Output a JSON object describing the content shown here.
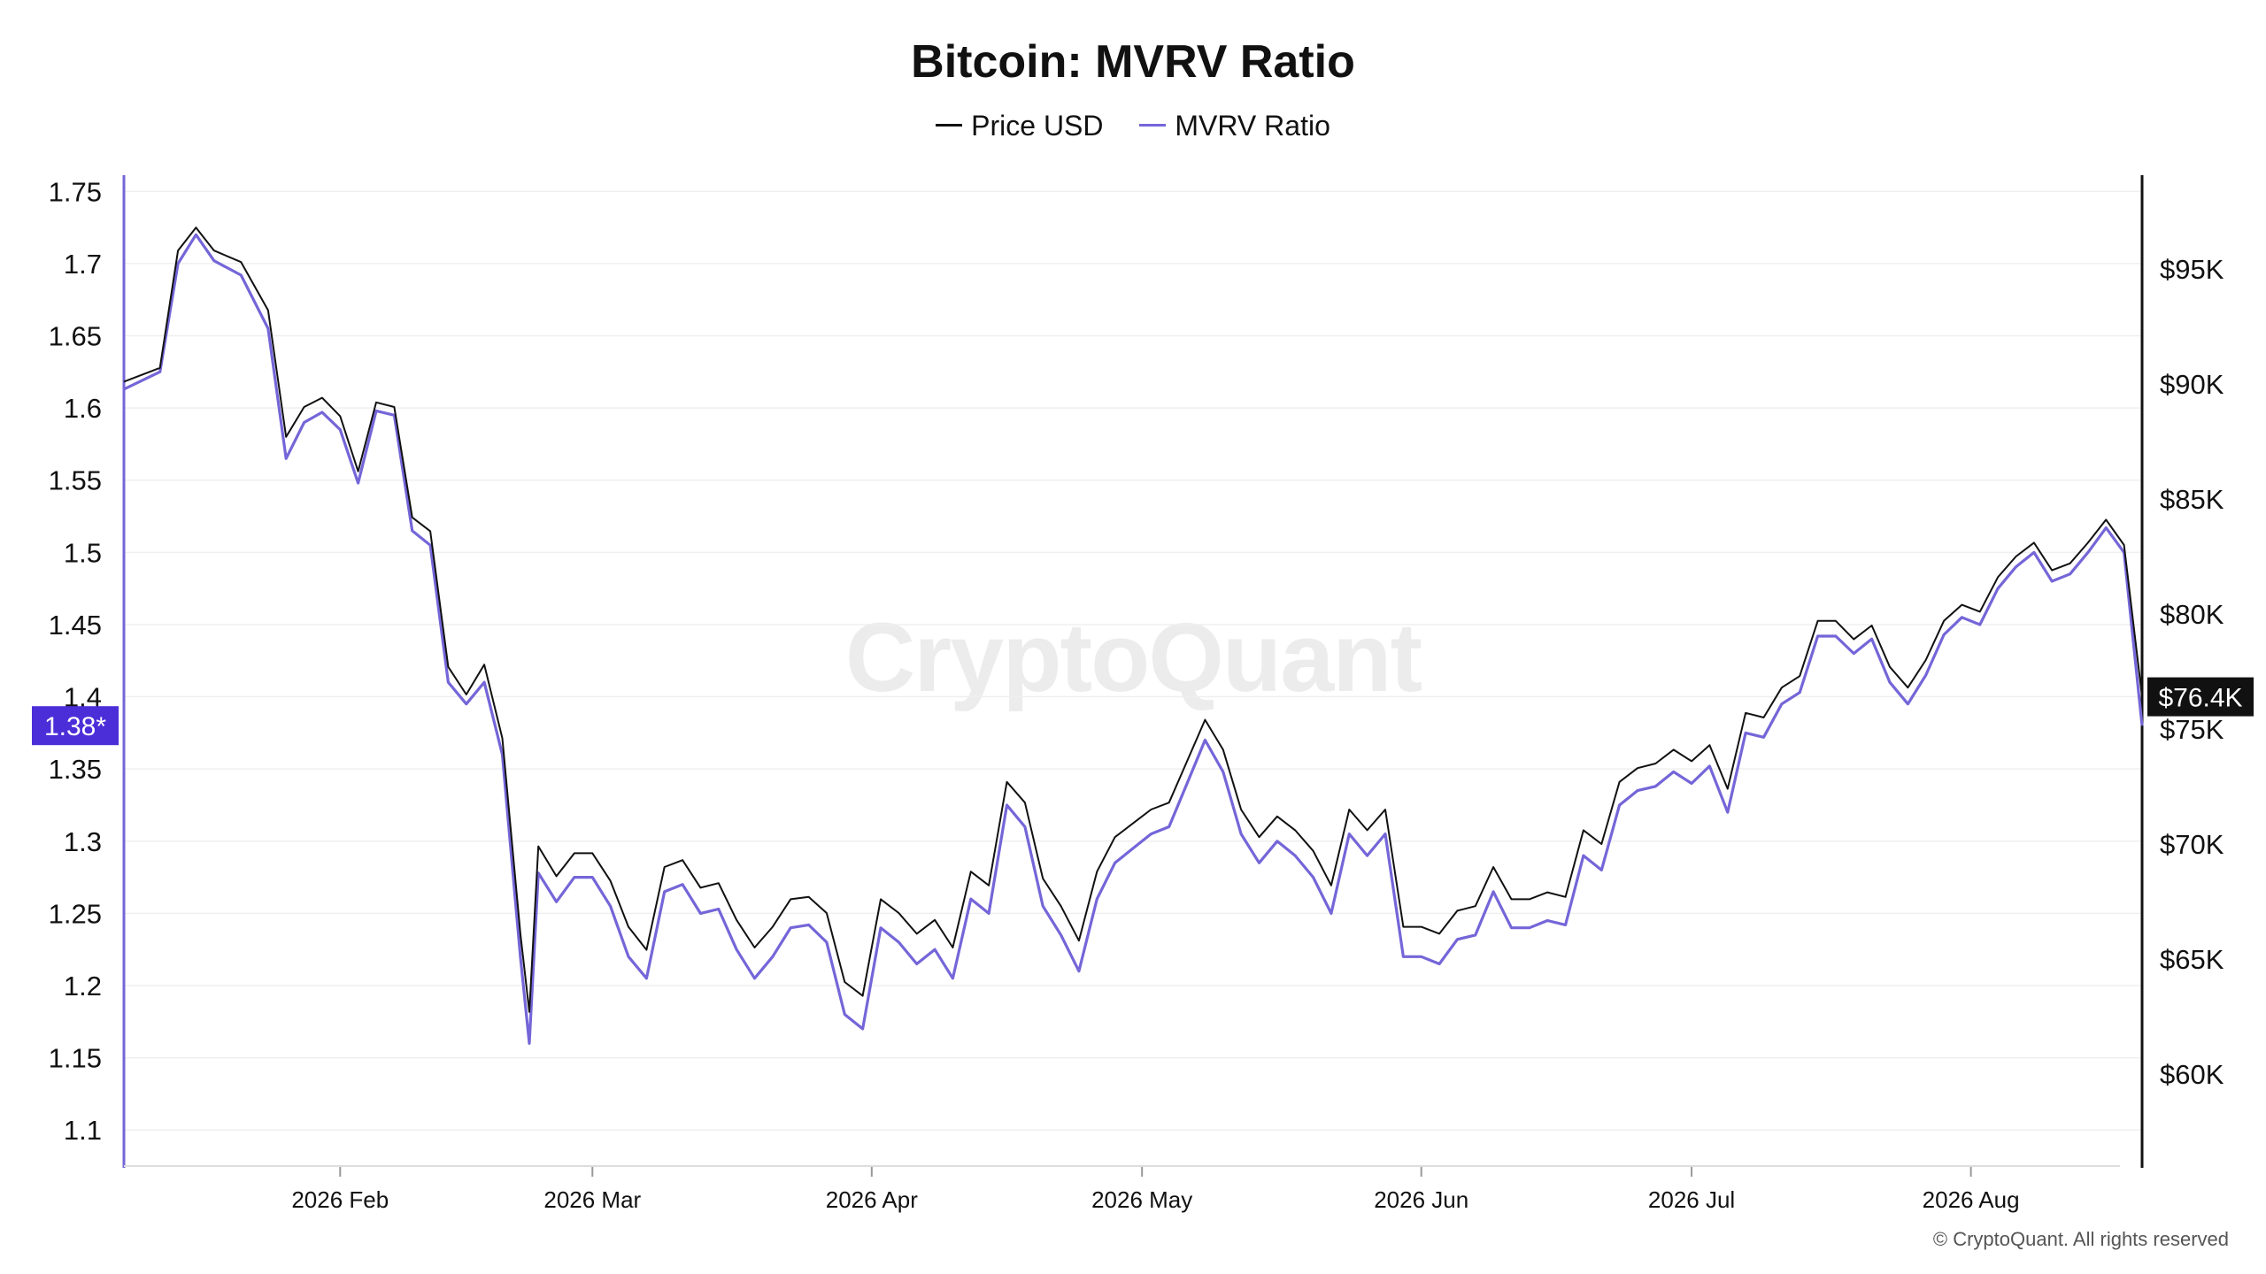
{
  "chart_data": {
    "type": "line",
    "title": "Bitcoin: MVRV Ratio",
    "legend_position": "top-center",
    "grid": true,
    "x_ticks": [
      "2026 Feb",
      "2026 Mar",
      "2026 Apr",
      "2026 May",
      "2026 Jun",
      "2026 Jul",
      "2026 Aug"
    ],
    "x_range": [
      "2026-01-08",
      "2026-08-20"
    ],
    "left_axis": {
      "label": "",
      "range": [
        1.075,
        1.76
      ],
      "ticks": [
        "1.75",
        "1.7",
        "1.65",
        "1.6",
        "1.55",
        "1.5",
        "1.45",
        "1.4",
        "1.35",
        "1.3",
        "1.25",
        "1.2",
        "1.15",
        "1.1"
      ],
      "current_value_label": "1.38*",
      "current_value": 1.38,
      "color": "#7466d8"
    },
    "right_axis": {
      "label": "",
      "range": [
        56000,
        99000
      ],
      "ticks": [
        "$95K",
        "$90K",
        "$85K",
        "$80K",
        "$75K",
        "$70K",
        "$65K",
        "$60K"
      ],
      "current_value_label": "$76.4K",
      "current_value": 76400,
      "color": "#111111"
    },
    "series": [
      {
        "name": "MVRV Ratio",
        "axis": "left",
        "color": "#7466d8",
        "points": [
          [
            "2026-01-08",
            1.613
          ],
          [
            "2026-01-12",
            1.625
          ],
          [
            "2026-01-14",
            1.7
          ],
          [
            "2026-01-16",
            1.72
          ],
          [
            "2026-01-18",
            1.702
          ],
          [
            "2026-01-21",
            1.692
          ],
          [
            "2026-01-24",
            1.655
          ],
          [
            "2026-01-26",
            1.565
          ],
          [
            "2026-01-28",
            1.59
          ],
          [
            "2026-01-30",
            1.597
          ],
          [
            "2026-02-01",
            1.585
          ],
          [
            "2026-02-03",
            1.548
          ],
          [
            "2026-02-05",
            1.598
          ],
          [
            "2026-02-07",
            1.595
          ],
          [
            "2026-02-09",
            1.515
          ],
          [
            "2026-02-11",
            1.505
          ],
          [
            "2026-02-13",
            1.41
          ],
          [
            "2026-02-15",
            1.395
          ],
          [
            "2026-02-17",
            1.41
          ],
          [
            "2026-02-19",
            1.36
          ],
          [
            "2026-02-21",
            1.22
          ],
          [
            "2026-02-22",
            1.16
          ],
          [
            "2026-02-23",
            1.278
          ],
          [
            "2026-02-25",
            1.258
          ],
          [
            "2026-02-27",
            1.275
          ],
          [
            "2026-03-01",
            1.275
          ],
          [
            "2026-03-03",
            1.255
          ],
          [
            "2026-03-05",
            1.22
          ],
          [
            "2026-03-07",
            1.205
          ],
          [
            "2026-03-09",
            1.265
          ],
          [
            "2026-03-11",
            1.27
          ],
          [
            "2026-03-13",
            1.25
          ],
          [
            "2026-03-15",
            1.253
          ],
          [
            "2026-03-17",
            1.225
          ],
          [
            "2026-03-19",
            1.205
          ],
          [
            "2026-03-21",
            1.22
          ],
          [
            "2026-03-23",
            1.24
          ],
          [
            "2026-03-25",
            1.242
          ],
          [
            "2026-03-27",
            1.23
          ],
          [
            "2026-03-29",
            1.18
          ],
          [
            "2026-03-31",
            1.17
          ],
          [
            "2026-04-02",
            1.24
          ],
          [
            "2026-04-04",
            1.23
          ],
          [
            "2026-04-06",
            1.215
          ],
          [
            "2026-04-08",
            1.225
          ],
          [
            "2026-04-10",
            1.205
          ],
          [
            "2026-04-12",
            1.26
          ],
          [
            "2026-04-14",
            1.25
          ],
          [
            "2026-04-16",
            1.325
          ],
          [
            "2026-04-18",
            1.31
          ],
          [
            "2026-04-20",
            1.255
          ],
          [
            "2026-04-22",
            1.235
          ],
          [
            "2026-04-24",
            1.21
          ],
          [
            "2026-04-26",
            1.26
          ],
          [
            "2026-04-28",
            1.285
          ],
          [
            "2026-04-30",
            1.295
          ],
          [
            "2026-05-02",
            1.305
          ],
          [
            "2026-05-04",
            1.31
          ],
          [
            "2026-05-06",
            1.34
          ],
          [
            "2026-05-08",
            1.37
          ],
          [
            "2026-05-10",
            1.348
          ],
          [
            "2026-05-12",
            1.305
          ],
          [
            "2026-05-14",
            1.285
          ],
          [
            "2026-05-16",
            1.3
          ],
          [
            "2026-05-18",
            1.29
          ],
          [
            "2026-05-20",
            1.275
          ],
          [
            "2026-05-22",
            1.25
          ],
          [
            "2026-05-24",
            1.305
          ],
          [
            "2026-05-26",
            1.29
          ],
          [
            "2026-05-28",
            1.305
          ],
          [
            "2026-05-30",
            1.22
          ],
          [
            "2026-06-01",
            1.22
          ],
          [
            "2026-06-03",
            1.215
          ],
          [
            "2026-06-05",
            1.232
          ],
          [
            "2026-06-07",
            1.235
          ],
          [
            "2026-06-09",
            1.265
          ],
          [
            "2026-06-11",
            1.24
          ],
          [
            "2026-06-13",
            1.24
          ],
          [
            "2026-06-15",
            1.245
          ],
          [
            "2026-06-17",
            1.242
          ],
          [
            "2026-06-19",
            1.29
          ],
          [
            "2026-06-21",
            1.28
          ],
          [
            "2026-06-23",
            1.325
          ],
          [
            "2026-06-25",
            1.335
          ],
          [
            "2026-06-27",
            1.338
          ],
          [
            "2026-06-29",
            1.348
          ],
          [
            "2026-07-01",
            1.34
          ],
          [
            "2026-07-03",
            1.352
          ],
          [
            "2026-07-05",
            1.32
          ],
          [
            "2026-07-07",
            1.375
          ],
          [
            "2026-07-09",
            1.372
          ],
          [
            "2026-07-11",
            1.395
          ],
          [
            "2026-07-13",
            1.403
          ],
          [
            "2026-07-15",
            1.442
          ],
          [
            "2026-07-17",
            1.442
          ],
          [
            "2026-07-19",
            1.43
          ],
          [
            "2026-07-21",
            1.44
          ],
          [
            "2026-07-23",
            1.41
          ],
          [
            "2026-07-25",
            1.395
          ],
          [
            "2026-07-27",
            1.415
          ],
          [
            "2026-07-29",
            1.443
          ],
          [
            "2026-07-31",
            1.455
          ],
          [
            "2026-08-02",
            1.45
          ],
          [
            "2026-08-04",
            1.475
          ],
          [
            "2026-08-06",
            1.49
          ],
          [
            "2026-08-08",
            1.5
          ],
          [
            "2026-08-10",
            1.48
          ],
          [
            "2026-08-12",
            1.485
          ],
          [
            "2026-08-14",
            1.5
          ],
          [
            "2026-08-16",
            1.517
          ],
          [
            "2026-08-18",
            1.5
          ],
          [
            "2026-08-20",
            1.38
          ]
        ]
      },
      {
        "name": "Price USD",
        "axis": "right",
        "color": "#111111",
        "points": [
          [
            "2026-01-08",
            90100
          ],
          [
            "2026-01-12",
            90700
          ],
          [
            "2026-01-14",
            95800
          ],
          [
            "2026-01-16",
            96800
          ],
          [
            "2026-01-18",
            95800
          ],
          [
            "2026-01-21",
            95300
          ],
          [
            "2026-01-24",
            93200
          ],
          [
            "2026-01-26",
            87700
          ],
          [
            "2026-01-28",
            89000
          ],
          [
            "2026-01-30",
            89400
          ],
          [
            "2026-02-01",
            88600
          ],
          [
            "2026-02-03",
            86200
          ],
          [
            "2026-02-05",
            89200
          ],
          [
            "2026-02-07",
            89000
          ],
          [
            "2026-02-09",
            84200
          ],
          [
            "2026-02-11",
            83600
          ],
          [
            "2026-02-13",
            77700
          ],
          [
            "2026-02-15",
            76500
          ],
          [
            "2026-02-17",
            77800
          ],
          [
            "2026-02-19",
            74600
          ],
          [
            "2026-02-21",
            66100
          ],
          [
            "2026-02-22",
            62700
          ],
          [
            "2026-02-23",
            69900
          ],
          [
            "2026-02-25",
            68600
          ],
          [
            "2026-02-27",
            69600
          ],
          [
            "2026-03-01",
            69600
          ],
          [
            "2026-03-03",
            68400
          ],
          [
            "2026-03-05",
            66400
          ],
          [
            "2026-03-07",
            65400
          ],
          [
            "2026-03-09",
            69000
          ],
          [
            "2026-03-11",
            69300
          ],
          [
            "2026-03-13",
            68100
          ],
          [
            "2026-03-15",
            68300
          ],
          [
            "2026-03-17",
            66700
          ],
          [
            "2026-03-19",
            65500
          ],
          [
            "2026-03-21",
            66400
          ],
          [
            "2026-03-23",
            67600
          ],
          [
            "2026-03-25",
            67700
          ],
          [
            "2026-03-27",
            67000
          ],
          [
            "2026-03-29",
            64000
          ],
          [
            "2026-03-31",
            63400
          ],
          [
            "2026-04-02",
            67600
          ],
          [
            "2026-04-04",
            67000
          ],
          [
            "2026-04-06",
            66100
          ],
          [
            "2026-04-08",
            66700
          ],
          [
            "2026-04-10",
            65500
          ],
          [
            "2026-04-12",
            68800
          ],
          [
            "2026-04-14",
            68200
          ],
          [
            "2026-04-16",
            72700
          ],
          [
            "2026-04-18",
            71800
          ],
          [
            "2026-04-20",
            68500
          ],
          [
            "2026-04-22",
            67300
          ],
          [
            "2026-04-24",
            65800
          ],
          [
            "2026-04-26",
            68800
          ],
          [
            "2026-04-28",
            70300
          ],
          [
            "2026-04-30",
            70900
          ],
          [
            "2026-05-02",
            71500
          ],
          [
            "2026-05-04",
            71800
          ],
          [
            "2026-05-06",
            73600
          ],
          [
            "2026-05-08",
            75400
          ],
          [
            "2026-05-10",
            74100
          ],
          [
            "2026-05-12",
            71500
          ],
          [
            "2026-05-14",
            70300
          ],
          [
            "2026-05-16",
            71200
          ],
          [
            "2026-05-18",
            70600
          ],
          [
            "2026-05-20",
            69700
          ],
          [
            "2026-05-22",
            68200
          ],
          [
            "2026-05-24",
            71500
          ],
          [
            "2026-05-26",
            70600
          ],
          [
            "2026-05-28",
            71500
          ],
          [
            "2026-05-30",
            66400
          ],
          [
            "2026-06-01",
            66400
          ],
          [
            "2026-06-03",
            66100
          ],
          [
            "2026-06-05",
            67100
          ],
          [
            "2026-06-07",
            67300
          ],
          [
            "2026-06-09",
            69000
          ],
          [
            "2026-06-11",
            67600
          ],
          [
            "2026-06-13",
            67600
          ],
          [
            "2026-06-15",
            67900
          ],
          [
            "2026-06-17",
            67700
          ],
          [
            "2026-06-19",
            70600
          ],
          [
            "2026-06-21",
            70000
          ],
          [
            "2026-06-23",
            72700
          ],
          [
            "2026-06-25",
            73300
          ],
          [
            "2026-06-27",
            73500
          ],
          [
            "2026-06-29",
            74100
          ],
          [
            "2026-07-01",
            73600
          ],
          [
            "2026-07-03",
            74300
          ],
          [
            "2026-07-05",
            72400
          ],
          [
            "2026-07-07",
            75700
          ],
          [
            "2026-07-09",
            75500
          ],
          [
            "2026-07-11",
            76800
          ],
          [
            "2026-07-13",
            77300
          ],
          [
            "2026-07-15",
            79700
          ],
          [
            "2026-07-17",
            79700
          ],
          [
            "2026-07-19",
            78900
          ],
          [
            "2026-07-21",
            79500
          ],
          [
            "2026-07-23",
            77700
          ],
          [
            "2026-07-25",
            76800
          ],
          [
            "2026-07-27",
            78000
          ],
          [
            "2026-07-29",
            79700
          ],
          [
            "2026-07-31",
            80400
          ],
          [
            "2026-08-02",
            80100
          ],
          [
            "2026-08-04",
            81600
          ],
          [
            "2026-08-06",
            82500
          ],
          [
            "2026-08-08",
            83100
          ],
          [
            "2026-08-10",
            81900
          ],
          [
            "2026-08-12",
            82200
          ],
          [
            "2026-08-14",
            83100
          ],
          [
            "2026-08-16",
            84100
          ],
          [
            "2026-08-18",
            83000
          ],
          [
            "2026-08-20",
            76400
          ]
        ]
      }
    ]
  },
  "legend": {
    "price_label": "Price USD",
    "mvrv_label": "MVRV Ratio"
  },
  "watermark": "CryptoQuant",
  "copyright": "© CryptoQuant. All rights reserved"
}
